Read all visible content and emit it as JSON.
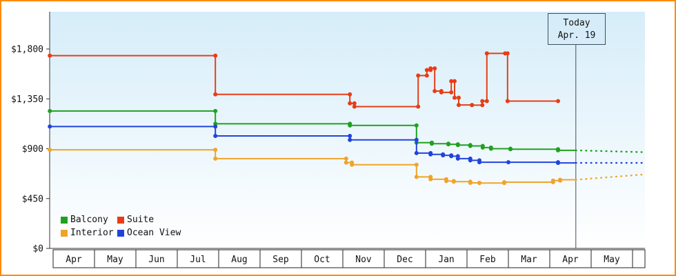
{
  "frame": {
    "border_color": "#ff8a00",
    "plot_bg_top": "#d6edf9",
    "plot_bg_bottom": "#ffffff"
  },
  "today_marker": {
    "line1": "Today",
    "line2": "Apr. 19",
    "m": 12.63
  },
  "chart_data": {
    "type": "line",
    "title": "",
    "xlabel": "",
    "ylabel": "",
    "grid": false,
    "legend_position": "bottom-left-inside",
    "y_axis": {
      "ticks": [
        0,
        450,
        900,
        1350,
        1800
      ],
      "labels": [
        "$0",
        "$450",
        "$900",
        "$1,350",
        "$1,800"
      ],
      "max": 2150
    },
    "x_axis": {
      "months": [
        "Apr",
        "May",
        "Jun",
        "Jul",
        "Aug",
        "Sep",
        "Oct",
        "Nov",
        "Dec",
        "Jan",
        "Feb",
        "Mar",
        "Apr",
        "May"
      ]
    },
    "series": [
      {
        "name": "Balcony",
        "color": "#1fa11f",
        "points": [
          [
            -0.08,
            1240
          ],
          [
            3.92,
            1125
          ],
          [
            7.17,
            1110
          ],
          [
            8.78,
            955
          ],
          [
            9.15,
            945
          ],
          [
            9.55,
            940
          ],
          [
            9.78,
            933
          ],
          [
            10.08,
            925
          ],
          [
            10.38,
            910
          ],
          [
            10.58,
            900
          ],
          [
            11.05,
            895
          ],
          [
            12.2,
            885
          ]
        ],
        "end_m": 12.63,
        "forecast": [
          [
            14.3,
            868
          ]
        ]
      },
      {
        "name": "Suite",
        "color": "#e83c17",
        "points": [
          [
            -0.08,
            1740
          ],
          [
            3.92,
            1390
          ],
          [
            7.17,
            1310
          ],
          [
            7.28,
            1280
          ],
          [
            8.82,
            1560
          ],
          [
            9.03,
            1610
          ],
          [
            9.12,
            1625
          ],
          [
            9.22,
            1420
          ],
          [
            9.38,
            1408
          ],
          [
            9.62,
            1510
          ],
          [
            9.7,
            1360
          ],
          [
            9.8,
            1295
          ],
          [
            10.12,
            1293
          ],
          [
            10.37,
            1330
          ],
          [
            10.48,
            1760
          ],
          [
            10.92,
            1760
          ],
          [
            10.98,
            1330
          ],
          [
            12.2,
            1330
          ]
        ],
        "end_m": null,
        "forecast": null
      },
      {
        "name": "Interior",
        "color": "#efa429",
        "points": [
          [
            -0.08,
            890
          ],
          [
            3.92,
            810
          ],
          [
            7.08,
            775
          ],
          [
            7.22,
            755
          ],
          [
            8.78,
            645
          ],
          [
            9.12,
            625
          ],
          [
            9.5,
            608
          ],
          [
            9.68,
            602
          ],
          [
            10.08,
            592
          ],
          [
            10.3,
            590
          ],
          [
            10.9,
            598
          ],
          [
            12.08,
            612
          ],
          [
            12.25,
            620
          ]
        ],
        "end_m": 12.63,
        "forecast": [
          [
            14.3,
            668
          ]
        ]
      },
      {
        "name": "Ocean View",
        "color": "#2143dd",
        "points": [
          [
            -0.08,
            1100
          ],
          [
            3.92,
            1015
          ],
          [
            7.17,
            980
          ],
          [
            8.78,
            860
          ],
          [
            9.12,
            848
          ],
          [
            9.42,
            840
          ],
          [
            9.62,
            832
          ],
          [
            9.78,
            810
          ],
          [
            10.08,
            795
          ],
          [
            10.3,
            778
          ],
          [
            11.0,
            778
          ],
          [
            12.2,
            772
          ]
        ],
        "end_m": 12.63,
        "forecast": [
          [
            14.3,
            772
          ]
        ]
      }
    ]
  }
}
